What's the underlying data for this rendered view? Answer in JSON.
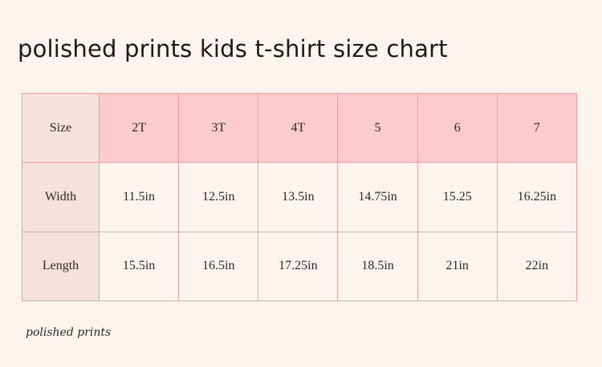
{
  "title": "polished prints kids t-shirt size chart",
  "table": {
    "header_label": "Size",
    "sizes": [
      "2T",
      "3T",
      "4T",
      "5",
      "6",
      "7"
    ],
    "rows": [
      {
        "label": "Width",
        "values": [
          "11.5in",
          "12.5in",
          "13.5in",
          "14.75in",
          "15.25",
          "16.25in"
        ]
      },
      {
        "label": "Length",
        "values": [
          "15.5in",
          "16.5in",
          "17.25in",
          "18.5in",
          "21in",
          "22in"
        ]
      }
    ]
  },
  "footer": {
    "brand": "polished prints"
  },
  "colors": {
    "background": "#fdf4ef",
    "header_fill": "#fccbcc",
    "label_fill": "#f6e2dc",
    "border": "#eba3a3"
  }
}
